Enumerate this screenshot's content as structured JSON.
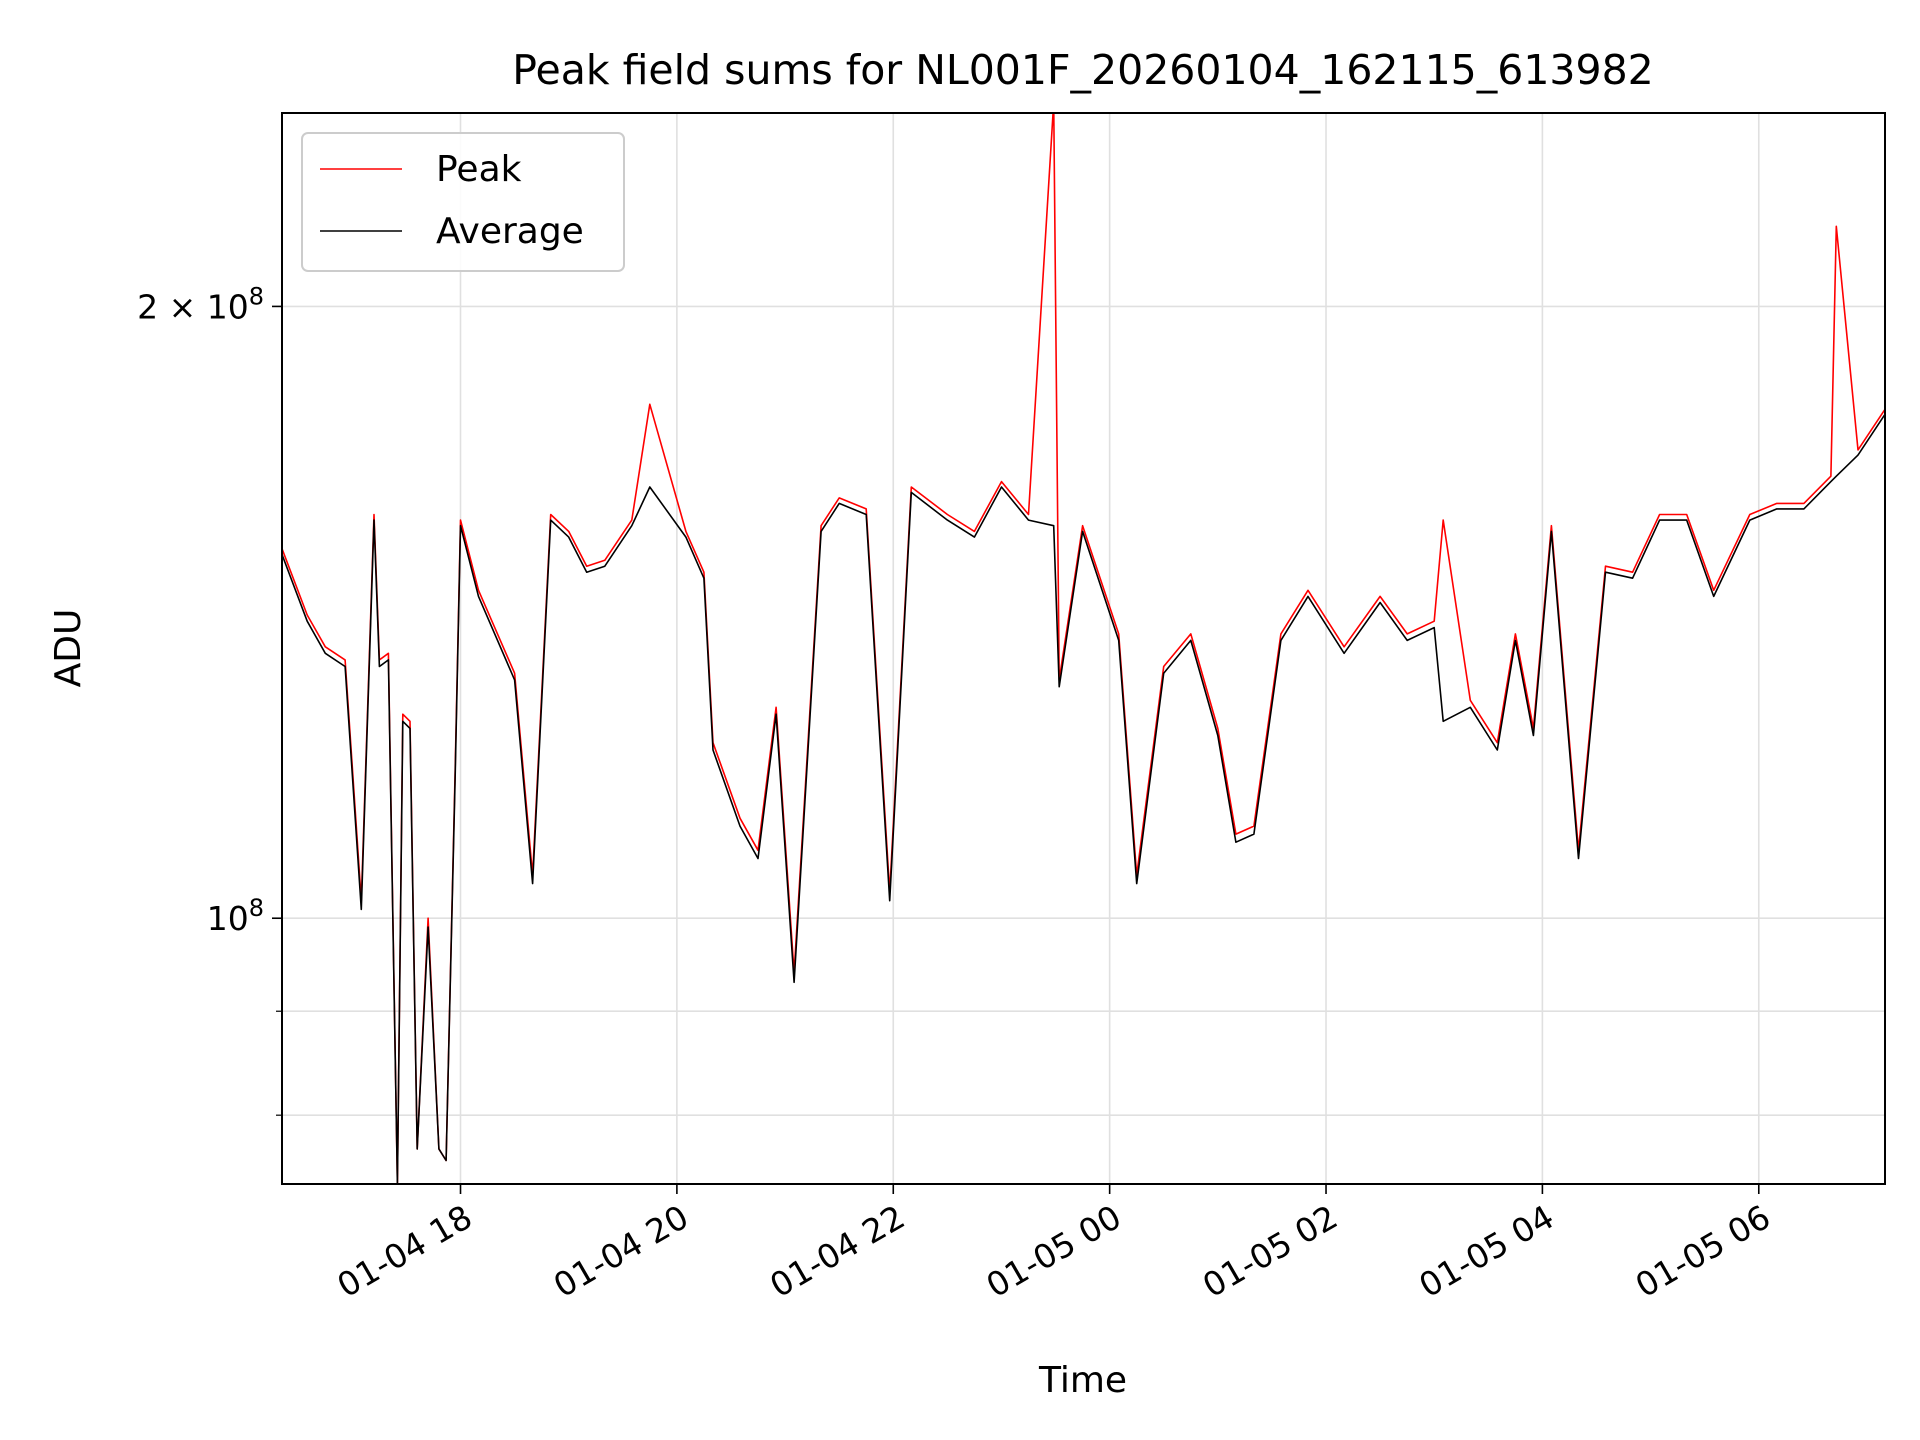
{
  "chart_data": {
    "type": "line",
    "title": "Peak field sums for NL001F_20260104_162115_613982",
    "xlabel": "Time",
    "ylabel": "ADU",
    "x_axis": {
      "type": "time",
      "range": [
        "2026-01-04 16:21",
        "2026-01-05 07:10"
      ],
      "ticks": [
        "2026-01-04 18:00",
        "2026-01-04 20:00",
        "2026-01-04 22:00",
        "2026-01-05 00:00",
        "2026-01-05 02:00",
        "2026-01-05 04:00",
        "2026-01-05 06:00"
      ],
      "tick_labels": [
        "01-04 18",
        "01-04 20",
        "01-04 22",
        "01-05 00",
        "01-05 02",
        "01-05 04",
        "01-05 06"
      ],
      "tick_rotation": 30
    },
    "y_axis": {
      "scale": "log",
      "range": [
        74000000,
        249000000
      ],
      "major_ticks": [
        100000000,
        200000000
      ],
      "major_tick_labels": [
        {
          "value": 100000000,
          "base": "10",
          "exp": "8",
          "prefix": ""
        },
        {
          "value": 200000000,
          "base": "10",
          "exp": "8",
          "prefix": "2 × "
        }
      ],
      "minor_ticks": [
        80000000,
        90000000
      ]
    },
    "grid": true,
    "legend": {
      "position": "top-left"
    },
    "colors": {
      "Peak": "#ff0000",
      "Average": "#000000"
    },
    "series": [
      {
        "name": "Peak",
        "color": "#ff0000",
        "x": [
          "2026-01-04 16:21",
          "2026-01-04 16:35",
          "2026-01-04 16:45",
          "2026-01-04 16:56",
          "2026-01-04 17:05",
          "2026-01-04 17:12",
          "2026-01-04 17:15",
          "2026-01-04 17:20",
          "2026-01-04 17:25",
          "2026-01-04 17:28",
          "2026-01-04 17:32",
          "2026-01-04 17:36",
          "2026-01-04 17:42",
          "2026-01-04 17:48",
          "2026-01-04 17:52",
          "2026-01-04 17:57",
          "2026-01-04 18:00",
          "2026-01-04 18:10",
          "2026-01-04 18:30",
          "2026-01-04 18:40",
          "2026-01-04 18:50",
          "2026-01-04 19:00",
          "2026-01-04 19:10",
          "2026-01-04 19:20",
          "2026-01-04 19:35",
          "2026-01-04 19:45",
          "2026-01-04 20:05",
          "2026-01-04 20:15",
          "2026-01-04 20:20",
          "2026-01-04 20:35",
          "2026-01-04 20:45",
          "2026-01-04 20:55",
          "2026-01-04 21:05",
          "2026-01-04 21:20",
          "2026-01-04 21:30",
          "2026-01-04 21:45",
          "2026-01-04 21:58",
          "2026-01-04 22:10",
          "2026-01-04 22:30",
          "2026-01-04 22:45",
          "2026-01-04 23:00",
          "2026-01-04 23:15",
          "2026-01-04 23:29",
          "2026-01-04 23:32",
          "2026-01-04 23:45",
          "2026-01-05 00:05",
          "2026-01-05 00:15",
          "2026-01-05 00:30",
          "2026-01-05 00:45",
          "2026-01-05 01:00",
          "2026-01-05 01:10",
          "2026-01-05 01:20",
          "2026-01-05 01:35",
          "2026-01-05 01:50",
          "2026-01-05 02:10",
          "2026-01-05 02:30",
          "2026-01-05 02:45",
          "2026-01-05 03:00",
          "2026-01-05 03:05",
          "2026-01-05 03:20",
          "2026-01-05 03:35",
          "2026-01-05 03:45",
          "2026-01-05 03:55",
          "2026-01-05 04:05",
          "2026-01-05 04:20",
          "2026-01-05 04:35",
          "2026-01-05 04:50",
          "2026-01-05 05:05",
          "2026-01-05 05:20",
          "2026-01-05 05:35",
          "2026-01-05 05:55",
          "2026-01-05 06:10",
          "2026-01-05 06:25",
          "2026-01-05 06:40",
          "2026-01-05 06:43",
          "2026-01-05 06:55",
          "2026-01-05 07:10"
        ],
        "y": [
          152000000,
          141000000,
          136000000,
          134000000,
          102000000,
          158000000,
          134000000,
          135000000,
          74000000,
          126000000,
          125000000,
          77000000,
          100000000,
          77000000,
          76000000,
          118000000,
          157000000,
          145000000,
          132000000,
          105000000,
          158000000,
          155000000,
          149000000,
          150000000,
          157000000,
          179000000,
          155000000,
          148000000,
          122000000,
          112000000,
          108000000,
          127000000,
          94000000,
          156000000,
          161000000,
          159000000,
          103000000,
          163000000,
          158000000,
          155000000,
          164000000,
          158000000,
          252000000,
          131000000,
          156000000,
          138000000,
          105000000,
          133000000,
          138000000,
          124000000,
          110000000,
          111000000,
          138000000,
          145000000,
          136000000,
          144000000,
          138000000,
          140000000,
          157000000,
          128000000,
          122000000,
          138000000,
          124000000,
          156000000,
          108000000,
          149000000,
          148000000,
          158000000,
          158000000,
          145000000,
          158000000,
          160000000,
          160000000,
          165000000,
          219000000,
          170000000,
          178000000
        ]
      },
      {
        "name": "Average",
        "color": "#000000",
        "x": [
          "2026-01-04 16:21",
          "2026-01-04 16:35",
          "2026-01-04 16:45",
          "2026-01-04 16:56",
          "2026-01-04 17:05",
          "2026-01-04 17:12",
          "2026-01-04 17:15",
          "2026-01-04 17:20",
          "2026-01-04 17:25",
          "2026-01-04 17:28",
          "2026-01-04 17:32",
          "2026-01-04 17:36",
          "2026-01-04 17:42",
          "2026-01-04 17:48",
          "2026-01-04 17:52",
          "2026-01-04 17:57",
          "2026-01-04 18:00",
          "2026-01-04 18:10",
          "2026-01-04 18:30",
          "2026-01-04 18:40",
          "2026-01-04 18:50",
          "2026-01-04 19:00",
          "2026-01-04 19:10",
          "2026-01-04 19:20",
          "2026-01-04 19:35",
          "2026-01-04 19:45",
          "2026-01-04 20:05",
          "2026-01-04 20:15",
          "2026-01-04 20:20",
          "2026-01-04 20:35",
          "2026-01-04 20:45",
          "2026-01-04 20:55",
          "2026-01-04 21:05",
          "2026-01-04 21:20",
          "2026-01-04 21:30",
          "2026-01-04 21:45",
          "2026-01-04 21:58",
          "2026-01-04 22:10",
          "2026-01-04 22:30",
          "2026-01-04 22:45",
          "2026-01-04 23:00",
          "2026-01-04 23:15",
          "2026-01-04 23:29",
          "2026-01-04 23:32",
          "2026-01-04 23:45",
          "2026-01-05 00:05",
          "2026-01-05 00:15",
          "2026-01-05 00:30",
          "2026-01-05 00:45",
          "2026-01-05 01:00",
          "2026-01-05 01:10",
          "2026-01-05 01:20",
          "2026-01-05 01:35",
          "2026-01-05 01:50",
          "2026-01-05 02:10",
          "2026-01-05 02:30",
          "2026-01-05 02:45",
          "2026-01-05 03:00",
          "2026-01-05 03:05",
          "2026-01-05 03:20",
          "2026-01-05 03:35",
          "2026-01-05 03:45",
          "2026-01-05 03:55",
          "2026-01-05 04:05",
          "2026-01-05 04:20",
          "2026-01-05 04:35",
          "2026-01-05 04:50",
          "2026-01-05 05:05",
          "2026-01-05 05:20",
          "2026-01-05 05:35",
          "2026-01-05 05:55",
          "2026-01-05 06:10",
          "2026-01-05 06:25",
          "2026-01-05 06:40",
          "2026-01-05 06:43",
          "2026-01-05 06:55",
          "2026-01-05 07:10"
        ],
        "y": [
          151000000,
          140000000,
          135000000,
          133000000,
          101000000,
          157000000,
          133000000,
          134000000,
          74000000,
          125000000,
          124000000,
          77000000,
          99000000,
          77000000,
          76000000,
          117000000,
          156000000,
          144000000,
          131000000,
          104000000,
          157000000,
          154000000,
          148000000,
          149000000,
          156000000,
          163000000,
          154000000,
          147000000,
          121000000,
          111000000,
          107000000,
          126000000,
          93000000,
          155000000,
          160000000,
          158000000,
          102000000,
          162000000,
          157000000,
          154000000,
          163000000,
          157000000,
          156000000,
          130000000,
          155000000,
          137000000,
          104000000,
          132000000,
          137000000,
          123000000,
          109000000,
          110000000,
          137000000,
          144000000,
          135000000,
          143000000,
          137000000,
          139000000,
          125000000,
          127000000,
          121000000,
          137000000,
          123000000,
          155000000,
          107000000,
          148000000,
          147000000,
          157000000,
          157000000,
          144000000,
          157000000,
          159000000,
          159000000,
          164000000,
          165000000,
          169000000,
          177000000
        ]
      }
    ]
  }
}
